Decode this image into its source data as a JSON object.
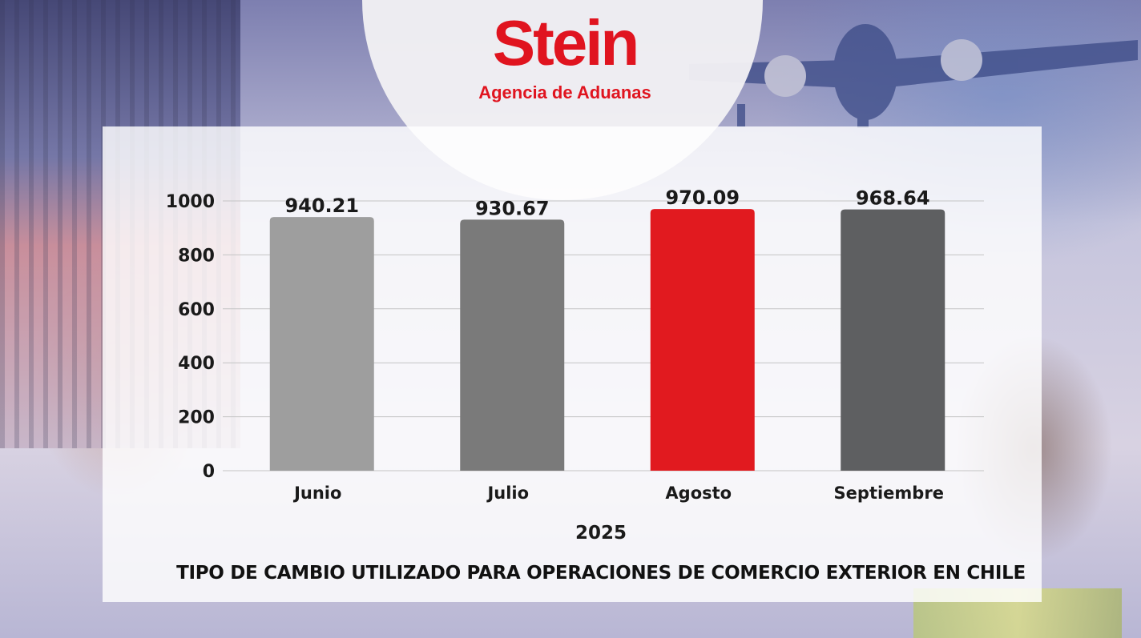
{
  "logo": {
    "title": "Stein",
    "subtitle": "Agencia de Aduanas",
    "color": "#e0141f"
  },
  "caption": "TIPO DE CAMBIO UTILIZADO PARA OPERACIONES DE COMERCIO EXTERIOR EN CHILE",
  "chart_data": {
    "type": "bar",
    "categories": [
      "Junio",
      "Julio",
      "Agosto",
      "Septiembre"
    ],
    "values": [
      940.21,
      930.67,
      970.09,
      968.64
    ],
    "value_labels": [
      "940.21",
      "930.67",
      "970.09",
      "968.64"
    ],
    "bar_colors": [
      "#9e9e9e",
      "#7a7a7a",
      "#e11a1f",
      "#5e5f61"
    ],
    "xlabel": "2025",
    "ylabel": "",
    "ylim": [
      0,
      1000
    ],
    "yticks": [
      0,
      200,
      400,
      600,
      800,
      1000
    ],
    "grid": true,
    "legend": "none"
  }
}
